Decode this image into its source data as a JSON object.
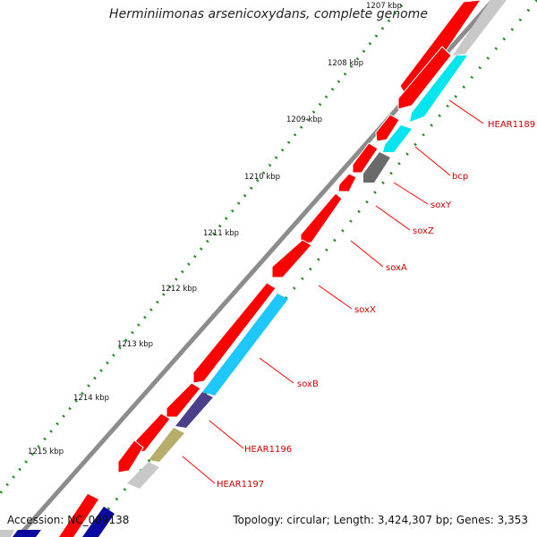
{
  "title": "Herminiimonas arsenicoxydans, complete genome",
  "footer": {
    "accession": "Accession: NC_009138",
    "summary": "Topology: circular; Length: 3,424,307 bp; Genes: 3,353"
  },
  "scale_labels": [
    {
      "id": "tick-1207",
      "label": "1207 kbp"
    },
    {
      "id": "tick-1208",
      "label": "1208 kbp"
    },
    {
      "id": "tick-1209",
      "label": "1209 kbp"
    },
    {
      "id": "tick-1210",
      "label": "1210 kbp"
    },
    {
      "id": "tick-1211",
      "label": "1211 kbp"
    },
    {
      "id": "tick-1212",
      "label": "1212 kbp"
    },
    {
      "id": "tick-1213",
      "label": "1213 kbp"
    },
    {
      "id": "tick-1214",
      "label": "1214 kbp"
    },
    {
      "id": "tick-1215",
      "label": "1215 kbp"
    }
  ],
  "gene_labels": [
    {
      "id": "hear1189",
      "label": "HEAR1189"
    },
    {
      "id": "bcp",
      "label": "bcp"
    },
    {
      "id": "soxy",
      "label": "soxY"
    },
    {
      "id": "soxz",
      "label": "soxZ"
    },
    {
      "id": "soxa",
      "label": "soxA"
    },
    {
      "id": "soxx",
      "label": "soxX"
    },
    {
      "id": "soxb",
      "label": "soxB"
    },
    {
      "id": "hear1196",
      "label": "HEAR1196"
    },
    {
      "id": "hear1197",
      "label": "HEAR1197"
    }
  ],
  "colors": {
    "backbone": "#8c8c8c",
    "forward_cds": "#ff0000",
    "reverse_cds_cyan": "#00e5ee",
    "reverse_cds_lightblue": "#1ec8ff",
    "reverse_cds_purple": "#4b3f8a",
    "reverse_cds_olive": "#b6ad6a",
    "reverse_cds_gray": "#6a6a6a",
    "reverse_cds_lightgray": "#c8c8c8",
    "tick_green": "#1a8a1a",
    "label_red": "#cc0000",
    "bottom_blue": "#0a0aa0"
  }
}
